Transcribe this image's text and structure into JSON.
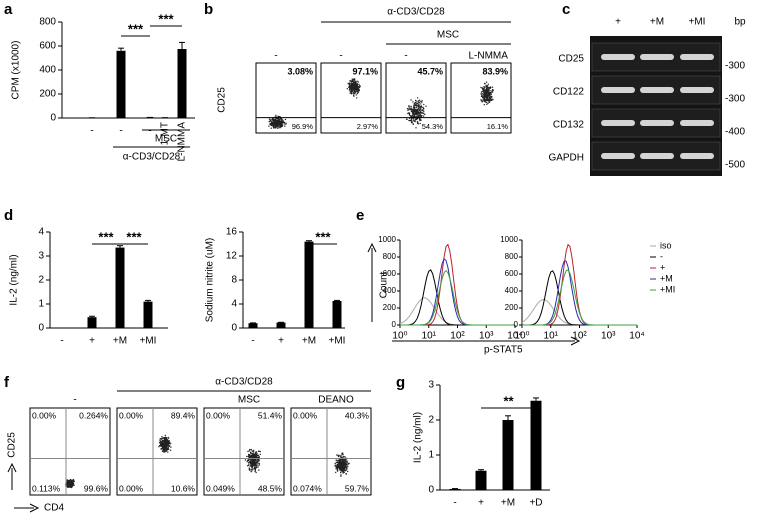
{
  "panel_labels": [
    "a",
    "b",
    "c",
    "d",
    "e",
    "f",
    "g"
  ],
  "chart_data": [
    {
      "type": "bar",
      "ylabel": "CPM (x1000)",
      "categories": [
        "-",
        "-",
        "-",
        "1-MT",
        "L-NMMA"
      ],
      "values": [
        2,
        560,
        5,
        3,
        575
      ],
      "errors": [
        0,
        22,
        0,
        0,
        55
      ],
      "color": "#000000",
      "ylim": [
        0,
        800
      ],
      "yticks": [
        0,
        200,
        400,
        600,
        800
      ],
      "annotations": [
        "***",
        "***"
      ],
      "groups": [
        "MSC",
        "α-CD3/CD28"
      ]
    },
    {
      "type": "bar",
      "ylabel": "IL-2 (ng/ml)",
      "categories": [
        "-",
        "+",
        "+M",
        "+MI"
      ],
      "values": [
        0,
        0.45,
        3.35,
        1.1
      ],
      "errors": [
        0,
        0.04,
        0.08,
        0.05
      ],
      "color": "#000000",
      "ylim": [
        0,
        4
      ],
      "yticks": [
        0,
        1,
        2,
        3,
        4
      ],
      "annotations": [
        "***",
        "***"
      ]
    },
    {
      "type": "bar",
      "ylabel": "Sodium nitrite (uM)",
      "categories": [
        "-",
        "+",
        "+M",
        "+MI"
      ],
      "values": [
        0.8,
        0.9,
        14.4,
        4.5
      ],
      "errors": [
        0.05,
        0.05,
        0.15,
        0.1
      ],
      "color": "#000000",
      "ylim": [
        0,
        16
      ],
      "yticks": [
        0,
        4,
        8,
        12,
        16
      ],
      "annotations": [
        "***"
      ]
    },
    {
      "type": "bar",
      "ylabel": "IL-2 (ng/ml)",
      "categories": [
        "-",
        "+",
        "+M",
        "+D"
      ],
      "values": [
        0.03,
        0.55,
        2.0,
        2.55
      ],
      "errors": [
        0.01,
        0.03,
        0.12,
        0.08
      ],
      "color": "#000000",
      "ylim": [
        0,
        3
      ],
      "yticks": [
        0,
        1,
        2,
        3
      ],
      "annotations": [
        "**"
      ]
    }
  ],
  "flow_b": {
    "ylabel": "CD25",
    "groups": [
      "α-CD3/CD28",
      "MSC"
    ],
    "plots": [
      {
        "header": "-",
        "top": "3.08%",
        "bottom": "96.9%"
      },
      {
        "header": "-",
        "top": "97.1%",
        "bottom": "2.97%"
      },
      {
        "header": "-",
        "top": "45.7%",
        "bottom": "54.3%"
      },
      {
        "header": "L-NMMA",
        "top": "83.9%",
        "bottom": "16.1%"
      }
    ]
  },
  "gel_c": {
    "columns": [
      "+",
      "+M",
      "+MI"
    ],
    "unit": "bp",
    "rows": [
      {
        "label": "CD25",
        "marker": "-300"
      },
      {
        "label": "CD122",
        "marker": "-300"
      },
      {
        "label": "CD132",
        "marker": "-400"
      },
      {
        "label": "GAPDH",
        "marker": "-500"
      }
    ]
  },
  "histogram_e": {
    "ylabel": "Count",
    "xlabel": "p-STAT5",
    "ylim": [
      0,
      1000
    ],
    "yticks": [
      0,
      200,
      400,
      600,
      800,
      1000
    ],
    "xscale": "log",
    "xlim": [
      1,
      10000
    ],
    "xticks": [
      {
        "value": 1,
        "label": "10⁰"
      },
      {
        "value": 10,
        "label": "10¹"
      },
      {
        "value": 100,
        "label": "10²"
      },
      {
        "value": 1000,
        "label": "10³"
      },
      {
        "value": 10000,
        "label": "10⁴"
      }
    ],
    "legend": [
      {
        "name": "iso",
        "color": "#aaaaaa"
      },
      {
        "name": "-",
        "color": "#000000"
      },
      {
        "name": "+",
        "color": "#c0202a"
      },
      {
        "name": "+M",
        "color": "#2a2ab0"
      },
      {
        "name": "+MI",
        "color": "#3aa040"
      }
    ]
  },
  "flow_f": {
    "ylabel": "CD25",
    "xlabel": "CD4",
    "group": "α-CD3/CD28",
    "plots": [
      {
        "header": "-",
        "quadrants": [
          "0.00%",
          "0.264%",
          "0.113%",
          "99.6%"
        ]
      },
      {
        "quadrants": [
          "0.00%",
          "89.4%",
          "0.00%",
          "10.6%"
        ]
      },
      {
        "header": "MSC",
        "quadrants": [
          "0.00%",
          "51.4%",
          "0.049%",
          "48.5%"
        ]
      },
      {
        "header": "DEANO",
        "quadrants": [
          "0.00%",
          "40.3%",
          "0.074%",
          "59.7%"
        ]
      }
    ]
  }
}
